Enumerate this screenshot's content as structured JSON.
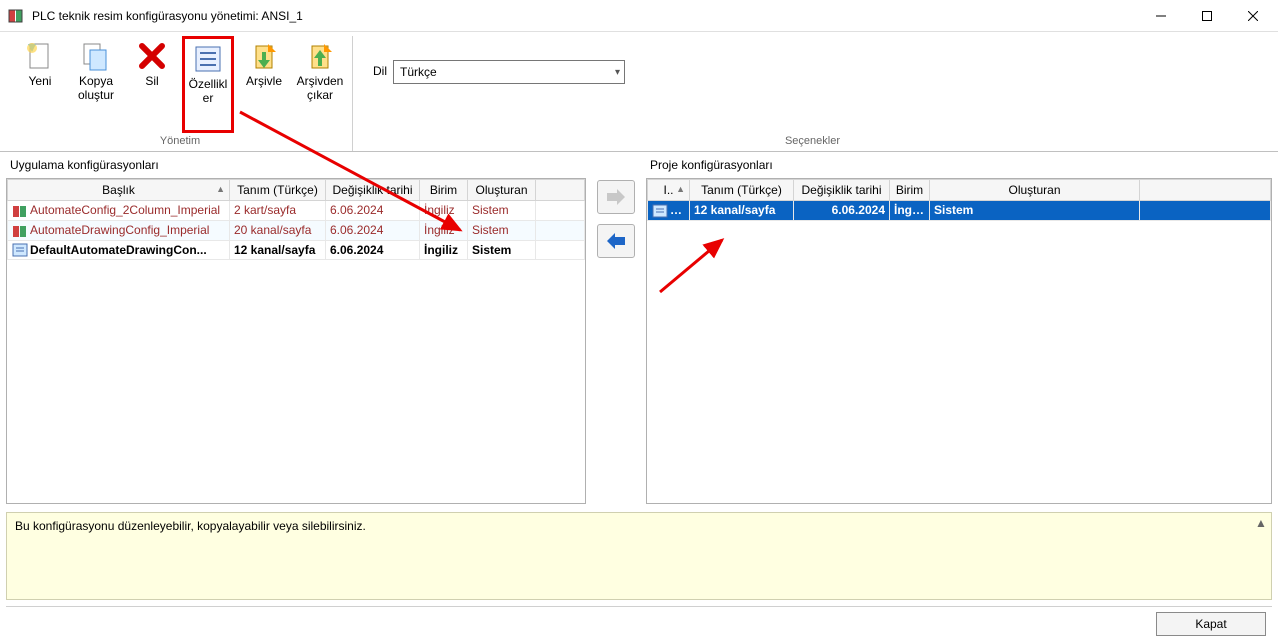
{
  "window": {
    "title": "PLC teknik resim konfigürasyonu yönetimi: ANSI_1"
  },
  "ribbon": {
    "yeni": "Yeni",
    "kopya": "Kopya oluştur",
    "sil": "Sil",
    "ozellikler": "Özellikler",
    "arsivle": "Arşivle",
    "arsivden": "Arşivden çıkar",
    "group_yonetim": "Yönetim",
    "dil_label": "Dil",
    "dil_value": "Türkçe",
    "group_secenekler": "Seçenekler"
  },
  "left": {
    "title": "Uygulama konfigürasyonları",
    "cols": {
      "baslik": "Başlık",
      "tanim": "Tanım (Türkçe)",
      "tarih": "Değişiklik tarihi",
      "birim": "Birim",
      "olusturan": "Oluşturan"
    },
    "widths": {
      "baslik": 222,
      "tanim": 96,
      "tarih": 94,
      "birim": 48,
      "olusturan": 68
    },
    "rows": [
      {
        "baslik": "AutomateConfig_2Column_Imperial",
        "tanim": "2 kart/sayfa",
        "tarih": "6.06.2024",
        "birim": "İngiliz",
        "olusturan": "Sistem",
        "selected": false,
        "alt": false
      },
      {
        "baslik": "AutomateDrawingConfig_Imperial",
        "tanim": "20 kanal/sayfa",
        "tarih": "6.06.2024",
        "birim": "İngiliz",
        "olusturan": "Sistem",
        "selected": false,
        "alt": true
      },
      {
        "baslik": "DefaultAutomateDrawingCon...",
        "tanim": "12 kanal/sayfa",
        "tarih": "6.06.2024",
        "birim": "İngiliz",
        "olusturan": "Sistem",
        "selected": true,
        "alt": false
      }
    ]
  },
  "right": {
    "title": "Proje konfigürasyonları",
    "cols": {
      "i": "I..",
      "tanim": "Tanım (Türkçe)",
      "tarih": "Değişiklik tarihi",
      "birim": "Birim",
      "olusturan": "Oluşturan"
    },
    "widths": {
      "i": 42,
      "tanim": 104,
      "tarih": 96,
      "birim": 40,
      "olusturan": 210
    },
    "rows": [
      {
        "i": "D..",
        "tanim": "12 kanal/sayfa",
        "tarih": "6.06.2024",
        "birim": "İngiliz",
        "olusturan": "Sistem"
      }
    ]
  },
  "status": {
    "text": "Bu konfigürasyonu düzenleyebilir, kopyalayabilir veya silebilirsiniz."
  },
  "footer": {
    "close": "Kapat"
  },
  "colors": {
    "highlight_red": "#e80000",
    "row_text": "#9a2b2b",
    "proj_sel_bg": "#0a63c2",
    "status_bg": "#ffffe1"
  }
}
